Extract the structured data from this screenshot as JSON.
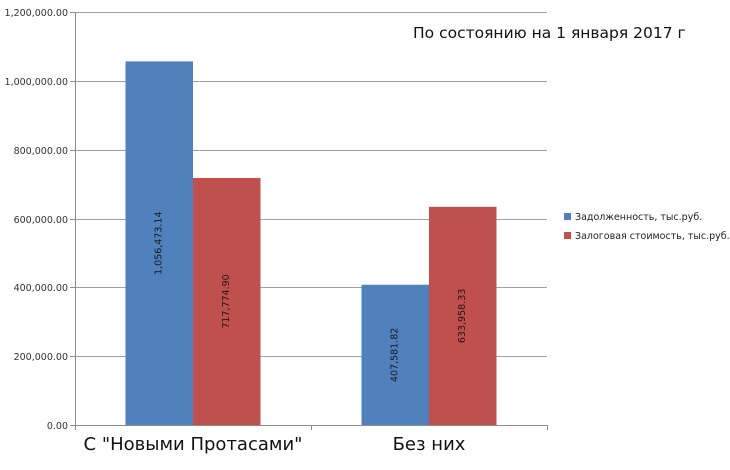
{
  "chart_data": {
    "type": "bar",
    "title": "По состоянию на 1 января 2017 г",
    "categories": [
      "С \"Новыми Протасами\"",
      "Без них"
    ],
    "series": [
      {
        "name": "Задолженность, тыс.руб.",
        "color": "#4f81bd",
        "values": [
          1056473.14,
          407581.82
        ],
        "labels": [
          "1,056,473.14",
          "407,581.82"
        ]
      },
      {
        "name": "Залоговая стоимость, тыс.руб.",
        "color": "#c0504d",
        "values": [
          717774.9,
          633958.33
        ],
        "labels": [
          "717,774.90",
          "633,958.33"
        ]
      }
    ],
    "xlabel": "",
    "ylabel": "",
    "ylim": [
      0,
      1200000
    ],
    "yticks": [
      0,
      200000,
      400000,
      600000,
      800000,
      1000000,
      1200000
    ],
    "ytick_labels": [
      "0.00",
      "200,000.00",
      "400,000.00",
      "600,000.00",
      "800,000.00",
      "1,000,000.00",
      "1,200,000.00"
    ],
    "grid": true,
    "legend_position": "right",
    "data_labels": "inside-rotated"
  },
  "colors": {
    "gridline": "#a0a0a0",
    "axis": "#8c8c8c"
  }
}
